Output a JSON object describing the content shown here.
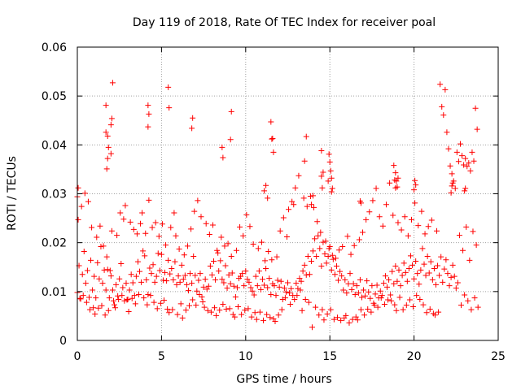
{
  "chart_data": {
    "type": "scatter",
    "title": "Day 119 of 2018, Rate Of TEC Index for receiver poal",
    "xlabel": "GPS time / hours",
    "ylabel": "ROTI / TECUs",
    "xlim": [
      0,
      25
    ],
    "ylim": [
      0,
      0.06
    ],
    "x_ticks": [
      0,
      5,
      10,
      15,
      20,
      25
    ],
    "x_tick_labels": [
      "0",
      "5",
      "10",
      "15",
      "20",
      "25"
    ],
    "y_ticks": [
      0,
      0.01,
      0.02,
      0.03,
      0.04,
      0.05,
      0.06
    ],
    "y_tick_labels": [
      "0",
      "0.01",
      "0.02",
      "0.03",
      "0.04",
      "0.05",
      "0.06"
    ],
    "grid": true,
    "marker": "+",
    "marker_color": "#ff0000",
    "points_x": [
      0.0,
      0.1,
      0.2,
      0.3,
      0.4,
      0.5,
      0.6,
      0.7,
      0.8,
      0.9,
      1.0,
      1.1,
      1.2,
      1.3,
      1.4,
      1.5,
      1.6,
      1.7,
      1.8,
      1.9,
      2.0,
      2.1,
      2.2,
      2.3,
      2.4,
      2.5,
      2.6,
      2.7,
      2.8,
      2.9,
      3.0,
      3.1,
      3.2,
      3.3,
      3.4,
      3.5,
      3.6,
      3.7,
      3.8,
      3.9,
      4.0,
      4.1,
      4.2,
      4.3,
      4.4,
      4.5,
      4.6,
      4.7,
      4.8,
      4.9,
      5.0,
      5.1,
      5.2,
      5.3,
      5.4,
      5.5,
      5.6,
      5.7,
      5.8,
      5.9,
      6.0,
      6.1,
      6.2,
      6.3,
      6.4,
      6.5,
      6.6,
      6.7,
      6.8,
      6.9,
      7.0,
      7.1,
      7.2,
      7.3,
      7.4,
      7.5,
      7.6,
      7.7,
      7.8,
      7.9,
      8.0,
      8.1,
      8.2,
      8.3,
      8.4,
      8.5,
      8.6,
      8.7,
      8.8,
      8.9,
      9.0,
      9.1,
      9.2,
      9.3,
      9.4,
      9.5,
      9.6,
      9.7,
      9.8,
      9.9,
      10.0,
      10.1,
      10.2,
      10.3,
      10.4,
      10.5,
      10.6,
      10.7,
      10.8,
      10.9,
      11.0,
      11.1,
      11.2,
      11.3,
      11.4,
      11.5,
      11.6,
      11.7,
      11.8,
      11.9,
      12.0,
      12.1,
      12.2,
      12.3,
      12.4,
      12.5,
      12.6,
      12.7,
      12.8,
      12.9,
      13.0,
      13.1,
      13.2,
      13.3,
      13.4,
      13.5,
      13.6,
      13.7,
      13.8,
      13.9,
      14.0,
      14.1,
      14.2,
      14.3,
      14.4,
      14.5,
      14.6,
      14.7,
      14.8,
      14.9,
      15.0,
      15.1,
      15.2,
      15.3,
      15.4,
      15.5,
      15.6,
      15.7,
      15.8,
      15.9,
      16.0,
      16.1,
      16.2,
      16.3,
      16.4,
      16.5,
      16.6,
      16.7,
      16.8,
      16.9,
      17.0,
      17.1,
      17.2,
      17.3,
      17.4,
      17.5,
      17.6,
      17.7,
      17.8,
      17.9,
      18.0,
      18.1,
      18.2,
      18.3,
      18.4,
      18.5,
      18.6,
      18.7,
      18.8,
      18.9,
      19.0,
      19.1,
      19.2,
      19.3,
      19.4,
      19.5,
      19.6,
      19.7,
      19.8,
      19.9,
      20.0,
      20.1,
      20.2,
      20.3,
      20.4,
      20.5,
      20.6,
      20.7,
      20.8,
      20.9,
      21.0,
      21.1,
      21.2,
      21.3,
      21.4,
      21.5,
      21.6,
      21.7,
      21.8,
      21.9,
      22.0,
      22.1,
      22.2,
      22.3,
      22.4,
      22.5,
      22.6,
      22.7,
      22.8,
      22.9,
      23.0,
      23.1,
      23.2,
      23.3,
      23.4,
      23.5,
      23.6,
      23.7,
      23.8,
      0.05,
      0.15,
      0.25,
      0.35,
      0.45,
      0.55,
      0.65,
      0.75,
      0.85,
      0.95,
      1.05,
      1.15,
      1.25,
      1.35,
      1.45,
      1.55,
      1.65,
      1.75,
      1.85,
      1.95,
      2.05,
      2.15,
      2.25,
      2.35,
      2.45,
      2.55,
      2.65,
      2.75,
      2.85,
      2.95,
      3.05,
      3.15,
      3.25,
      3.35,
      3.45,
      3.55,
      3.65,
      3.75,
      3.85,
      3.95,
      4.05,
      4.15,
      4.25,
      4.35,
      4.45,
      4.55,
      4.65,
      4.75,
      4.85,
      4.95,
      5.05,
      5.15,
      5.25,
      5.35,
      5.45,
      5.55,
      5.65,
      5.75,
      5.85,
      5.95,
      6.05,
      6.15,
      6.25,
      6.35,
      6.45,
      6.55,
      6.65,
      6.75,
      6.85,
      6.95,
      7.05,
      7.15,
      7.25,
      7.35,
      7.45,
      7.55,
      7.65,
      7.75,
      7.85,
      7.95,
      8.05,
      8.15,
      8.25,
      8.35,
      8.45,
      8.55,
      8.65,
      8.75,
      8.85,
      8.95,
      9.05,
      9.15,
      9.25,
      9.35,
      9.45,
      9.55,
      9.65,
      9.75,
      9.85,
      9.95,
      10.05,
      10.15,
      10.25,
      10.35,
      10.45,
      10.55,
      10.65,
      10.75,
      10.85,
      10.95,
      11.05,
      11.15,
      11.25,
      11.35,
      11.45,
      11.55,
      11.65,
      11.75,
      11.85,
      11.95,
      12.05,
      12.15,
      12.25,
      12.35,
      12.45,
      12.55,
      12.65,
      12.75,
      12.85,
      12.95,
      13.05,
      13.15,
      13.25,
      13.35,
      13.45,
      13.55,
      13.65,
      13.75,
      13.85,
      13.95,
      14.05,
      14.15,
      14.25,
      14.35,
      14.45,
      14.55,
      14.65,
      14.75,
      14.85,
      14.95,
      15.05,
      15.15,
      15.25,
      15.35,
      15.45,
      15.55,
      15.65,
      15.75,
      15.85,
      15.95,
      16.05,
      16.15,
      16.25,
      16.35,
      16.45,
      16.55,
      16.65,
      16.75,
      16.85,
      16.95,
      17.05,
      17.15,
      17.25,
      17.35,
      17.45,
      17.55,
      17.65,
      17.75,
      17.85,
      17.95,
      18.05,
      18.15,
      18.25,
      18.35,
      18.45,
      18.55,
      18.65,
      18.75,
      18.85,
      18.95,
      19.05,
      19.15,
      19.25,
      19.35,
      19.45,
      19.55,
      19.65,
      19.75,
      19.85,
      19.95,
      20.05,
      20.15,
      20.25,
      20.35,
      20.45,
      20.55,
      20.65,
      20.75,
      20.85,
      20.95,
      21.05,
      21.15,
      21.25,
      21.35,
      21.45,
      21.55,
      21.65,
      21.75,
      21.85,
      21.95,
      22.05,
      22.15,
      22.25,
      22.35,
      22.45,
      22.55,
      22.65,
      22.75,
      22.85,
      22.95,
      23.05,
      23.15,
      23.25,
      23.35,
      23.45,
      23.55,
      23.65,
      23.75,
      1.7,
      1.7,
      1.75,
      1.8,
      1.8,
      1.85,
      2.0,
      2.0,
      2.05,
      2.1,
      4.2,
      4.2,
      4.25,
      5.4,
      5.45,
      6.8,
      6.85,
      8.6,
      8.65,
      9.1,
      9.15,
      11.5,
      11.55,
      11.6,
      11.65,
      13.5,
      13.6,
      14.5,
      14.5,
      14.55,
      14.6,
      14.9,
      14.95,
      15.0,
      15.05,
      15.1,
      18.8,
      18.85,
      18.9,
      18.9,
      18.95,
      19.0,
      19.05,
      20.0,
      20.05,
      20.1,
      22.2,
      22.25,
      22.3,
      23.0,
      23.05,
      0.0,
      0.05,
      11.1,
      11.2,
      11.3,
      15.1,
      15.15,
      13.9,
      14.0,
      16.8,
      16.85,
      3.6,
      3.65,
      4.4,
      7.3,
      7.35,
      12.2,
      12.25,
      17.5,
      17.55,
      18.2,
      18.25,
      19.4,
      19.45,
      21.0,
      21.05,
      23.5,
      23.55,
      16.4,
      16.45,
      9.7,
      9.75,
      10.4,
      10.45
    ],
    "points_y": [
      0.0098,
      0.0153,
      0.0085,
      0.0135,
      0.0182,
      0.0117,
      0.0143,
      0.0088,
      0.0164,
      0.0103,
      0.0131,
      0.0087,
      0.0159,
      0.0126,
      0.0192,
      0.0117,
      0.0144,
      0.0103,
      0.0145,
      0.0087,
      0.0132,
      0.0103,
      0.0073,
      0.0114,
      0.0091,
      0.0126,
      0.0157,
      0.0108,
      0.0081,
      0.0117,
      0.0084,
      0.0103,
      0.0135,
      0.0118,
      0.0092,
      0.0131,
      0.0161,
      0.0141,
      0.0119,
      0.0183,
      0.0173,
      0.0124,
      0.0094,
      0.0148,
      0.0137,
      0.0155,
      0.0119,
      0.0131,
      0.0178,
      0.0143,
      0.0176,
      0.0123,
      0.0139,
      0.0122,
      0.0164,
      0.0136,
      0.0147,
      0.0124,
      0.0161,
      0.0114,
      0.0132,
      0.0119,
      0.0154,
      0.0125,
      0.0133,
      0.0114,
      0.0102,
      0.0137,
      0.0117,
      0.0172,
      0.0133,
      0.0101,
      0.0123,
      0.0137,
      0.0089,
      0.0109,
      0.0125,
      0.0105,
      0.0111,
      0.0152,
      0.0134,
      0.0162,
      0.0124,
      0.0184,
      0.0142,
      0.0163,
      0.0125,
      0.0118,
      0.0153,
      0.0107,
      0.0134,
      0.0116,
      0.0138,
      0.0111,
      0.0089,
      0.0108,
      0.0127,
      0.0131,
      0.0137,
      0.0112,
      0.0142,
      0.0125,
      0.0119,
      0.0108,
      0.0101,
      0.0093,
      0.0131,
      0.0112,
      0.0142,
      0.0104,
      0.0125,
      0.0113,
      0.0147,
      0.0108,
      0.0127,
      0.0094,
      0.0116,
      0.0112,
      0.0092,
      0.0123,
      0.0109,
      0.0121,
      0.0084,
      0.0107,
      0.0099,
      0.0118,
      0.0097,
      0.0106,
      0.0092,
      0.0084,
      0.0117,
      0.0106,
      0.0127,
      0.0121,
      0.0142,
      0.0154,
      0.0134,
      0.0172,
      0.0135,
      0.0162,
      0.0183,
      0.0208,
      0.0172,
      0.0214,
      0.0188,
      0.0152,
      0.0201,
      0.0177,
      0.0158,
      0.0172,
      0.0192,
      0.0144,
      0.0166,
      0.0135,
      0.0152,
      0.0123,
      0.0141,
      0.0132,
      0.0103,
      0.0124,
      0.0097,
      0.0116,
      0.0137,
      0.0104,
      0.0116,
      0.0094,
      0.0112,
      0.0097,
      0.0124,
      0.0088,
      0.0103,
      0.0091,
      0.0122,
      0.0099,
      0.0086,
      0.0112,
      0.0076,
      0.0095,
      0.0113,
      0.0087,
      0.0101,
      0.0092,
      0.0117,
      0.0132,
      0.0109,
      0.0124,
      0.0093,
      0.0141,
      0.0116,
      0.0152,
      0.0121,
      0.0144,
      0.0112,
      0.0133,
      0.0158,
      0.0139,
      0.0121,
      0.0147,
      0.0173,
      0.0154,
      0.0126,
      0.0162,
      0.0137,
      0.0115,
      0.0144,
      0.0188,
      0.0156,
      0.0133,
      0.0172,
      0.0138,
      0.0161,
      0.0124,
      0.0147,
      0.0114,
      0.0153,
      0.0133,
      0.0171,
      0.0119,
      0.0146,
      0.0165,
      0.0137,
      0.0112,
      0.0129,
      0.0154,
      0.0131,
      0.0107,
      0.0118,
      0.0215,
      0.0072,
      0.0184,
      0.0093,
      0.0232,
      0.0081,
      0.0164,
      0.0063,
      0.0223,
      0.0087,
      0.0195,
      0.0068,
      0.0247,
      0.0086,
      0.0274,
      0.0092,
      0.0301,
      0.0078,
      0.0284,
      0.0063,
      0.0231,
      0.0067,
      0.0054,
      0.0211,
      0.0066,
      0.0234,
      0.0071,
      0.0193,
      0.0052,
      0.0171,
      0.0061,
      0.0143,
      0.0224,
      0.0081,
      0.0067,
      0.0215,
      0.0084,
      0.0261,
      0.0092,
      0.0248,
      0.0276,
      0.0083,
      0.0059,
      0.0242,
      0.0086,
      0.0227,
      0.0075,
      0.0218,
      0.0094,
      0.0239,
      0.0261,
      0.0087,
      0.0219,
      0.0073,
      0.0287,
      0.0092,
      0.0231,
      0.0078,
      0.0241,
      0.0065,
      0.0213,
      0.0076,
      0.0238,
      0.0082,
      0.0195,
      0.0064,
      0.0057,
      0.0231,
      0.0063,
      0.0261,
      0.0214,
      0.0053,
      0.0187,
      0.0075,
      0.0046,
      0.0175,
      0.0062,
      0.0193,
      0.0071,
      0.0228,
      0.0083,
      0.0264,
      0.0072,
      0.0286,
      0.0094,
      0.0253,
      0.0079,
      0.0068,
      0.0239,
      0.0061,
      0.0217,
      0.0058,
      0.0236,
      0.0067,
      0.0051,
      0.0179,
      0.0062,
      0.0211,
      0.0074,
      0.0193,
      0.0064,
      0.0198,
      0.0065,
      0.0172,
      0.0053,
      0.0048,
      0.0184,
      0.0069,
      0.0232,
      0.0053,
      0.0214,
      0.0062,
      0.0257,
      0.0065,
      0.0233,
      0.0048,
      0.0197,
      0.0057,
      0.0043,
      0.0188,
      0.0058,
      0.0201,
      0.0041,
      0.0163,
      0.0053,
      0.0182,
      0.0047,
      0.0165,
      0.0044,
      0.0039,
      0.0171,
      0.0052,
      0.0224,
      0.0063,
      0.0251,
      0.0087,
      0.0212,
      0.0268,
      0.0074,
      0.0284,
      0.0278,
      0.0312,
      0.0092,
      0.0337,
      0.0103,
      0.0061,
      0.0291,
      0.0084,
      0.0274,
      0.0078,
      0.0295,
      0.0027,
      0.0272,
      0.0068,
      0.0243,
      0.0052,
      0.0221,
      0.0063,
      0.0042,
      0.0203,
      0.0054,
      0.0188,
      0.0063,
      0.0174,
      0.0043,
      0.0168,
      0.0047,
      0.0185,
      0.0041,
      0.0192,
      0.0046,
      0.0051,
      0.0213,
      0.0036,
      0.0176,
      0.0043,
      0.0194,
      0.0048,
      0.0042,
      0.0206,
      0.0063,
      0.0221,
      0.0052,
      0.0247,
      0.0064,
      0.0263,
      0.0058,
      0.0286,
      0.0072,
      0.0311,
      0.0068,
      0.0253,
      0.0087,
      0.0234,
      0.0074,
      0.0278,
      0.0083,
      0.0322,
      0.0081,
      0.0256,
      0.0073,
      0.0061,
      0.0241,
      0.0088,
      0.0226,
      0.0063,
      0.0253,
      0.0072,
      0.0214,
      0.0083,
      0.0247,
      0.0069,
      0.0281,
      0.0092,
      0.0235,
      0.0084,
      0.0264,
      0.0073,
      0.0218,
      0.0057,
      0.0233,
      0.0064,
      0.0246,
      0.0055,
      0.0052,
      0.0224,
      0.0058,
      0.0524,
      0.0478,
      0.0461,
      0.0513,
      0.0426,
      0.0392,
      0.0357,
      0.0341,
      0.0326,
      0.0311,
      0.0385,
      0.0366,
      0.0402,
      0.0378,
      0.0359,
      0.0372,
      0.0356,
      0.0363,
      0.0347,
      0.0385,
      0.0367,
      0.0475,
      0.0432,
      0.0481,
      0.0426,
      0.0351,
      0.0372,
      0.0418,
      0.0395,
      0.0441,
      0.0382,
      0.0454,
      0.0527,
      0.0481,
      0.0437,
      0.0463,
      0.0518,
      0.0476,
      0.0434,
      0.0455,
      0.0395,
      0.0374,
      0.0411,
      0.0468,
      0.0447,
      0.0412,
      0.0413,
      0.0385,
      0.0367,
      0.0417,
      0.0388,
      0.0336,
      0.0312,
      0.0344,
      0.0326,
      0.0381,
      0.0365,
      0.0347,
      0.0332,
      0.0358,
      0.0328,
      0.0343,
      0.0312,
      0.0326,
      0.0314,
      0.0332,
      0.0308,
      0.0327,
      0.0318,
      0.0302,
      0.0316,
      0.0322,
      0.0306,
      0.0311,
      0.0294,
      0.0312,
      0.0306,
      0.0317,
      0.0291,
      0.0304,
      0.0311,
      0.0278,
      0.0296,
      0.0285,
      0.0281
    ]
  }
}
